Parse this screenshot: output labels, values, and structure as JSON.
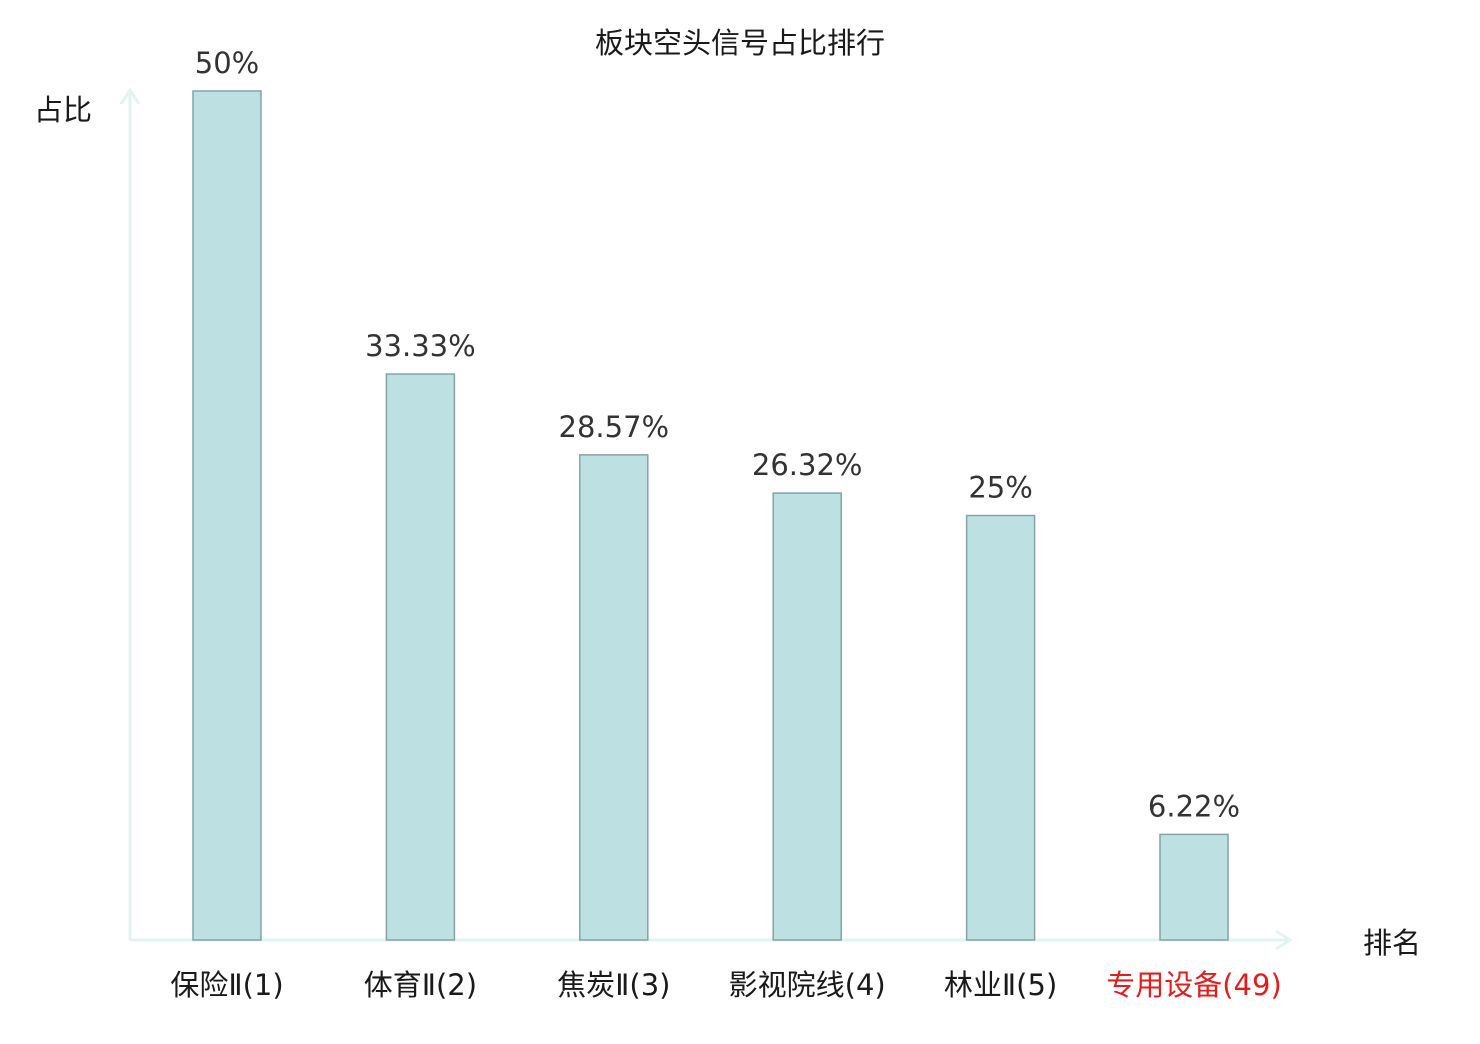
{
  "chart_data": {
    "type": "bar",
    "title": "板块空头信号占比排行",
    "ylabel": "占比",
    "xlabel": "排名",
    "categories": [
      "保险Ⅱ(1)",
      "体育Ⅱ(2)",
      "焦炭Ⅱ(3)",
      "影视院线(4)",
      "林业Ⅱ(5)",
      "专用设备(49)"
    ],
    "values": [
      50,
      33.33,
      28.57,
      26.32,
      25,
      6.22
    ],
    "value_labels": [
      "50%",
      "33.33%",
      "28.57%",
      "26.32%",
      "25%",
      "6.22%"
    ],
    "ylim": [
      0,
      50
    ],
    "grid": false,
    "highlight_index": 5
  },
  "colors": {
    "bar_fill": "#bde0e3",
    "bar_stroke": "#82a4a6",
    "axis": "#e3f3f1",
    "text": "#1a1a1a",
    "value_label": "#333333",
    "highlight": "#e01e1e"
  }
}
